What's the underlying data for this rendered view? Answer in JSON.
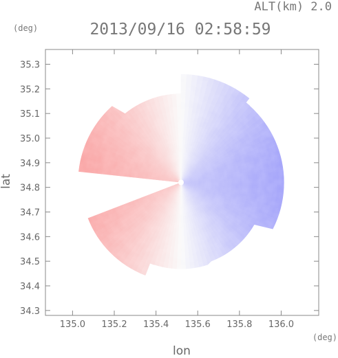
{
  "header": {
    "altitude_label": "ALT(km) 2.0",
    "datetime": "2013/09/16 02:58:59",
    "y_unit": "(deg)",
    "x_unit": "(deg)"
  },
  "chart_data": {
    "type": "heatmap",
    "xlabel": "lon",
    "ylabel": "lat",
    "xlim": [
      134.87,
      136.18
    ],
    "ylim": [
      34.28,
      35.36
    ],
    "x_ticks": [
      135.0,
      135.2,
      135.4,
      135.6,
      135.8,
      136.0
    ],
    "y_ticks": [
      34.3,
      34.4,
      34.5,
      34.6,
      34.7,
      34.8,
      34.9,
      35.0,
      35.1,
      35.2,
      35.3
    ],
    "x_tick_labels": [
      "135.0",
      "135.2",
      "135.4",
      "135.6",
      "135.8",
      "136.0"
    ],
    "y_tick_labels": [
      "34.3",
      "34.4",
      "34.5",
      "34.6",
      "34.7",
      "34.8",
      "34.9",
      "35.0",
      "35.1",
      "35.2",
      "35.3"
    ],
    "radar_center": {
      "lon": 135.52,
      "lat": 34.82
    },
    "radar_range_deg": 0.52,
    "colors": {
      "positive": "#f08080",
      "negative": "#8080f0",
      "neutral": "#f8f8ff"
    },
    "grid": false,
    "legend": "none"
  }
}
